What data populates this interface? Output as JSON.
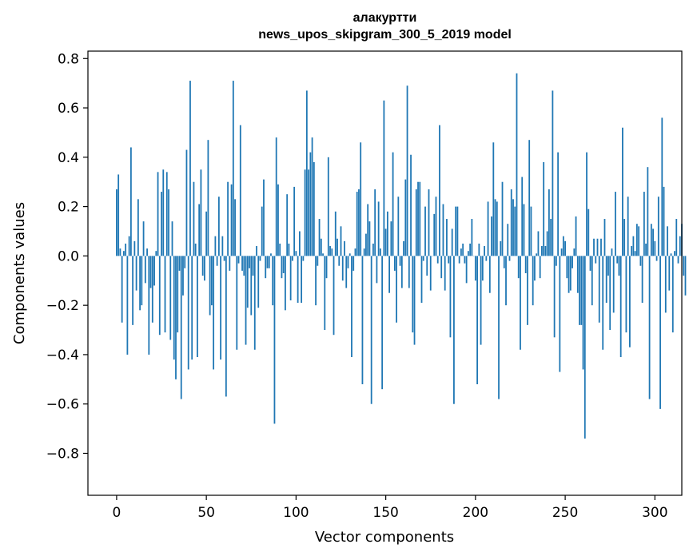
{
  "chart_data": {
    "type": "bar",
    "title_line1": "алакуртти",
    "title_line2": "news_upos_skipgram_300_5_2019 model",
    "xlabel": "Vector components",
    "ylabel": "Components values",
    "xlim": [
      -16,
      315
    ],
    "ylim": [
      -0.97,
      0.83
    ],
    "xticks": [
      0,
      50,
      100,
      150,
      200,
      250,
      300
    ],
    "xtick_labels": [
      "0",
      "50",
      "100",
      "150",
      "200",
      "250",
      "300"
    ],
    "yticks": [
      -0.8,
      -0.6,
      -0.4,
      -0.2,
      0.0,
      0.2,
      0.4,
      0.6,
      0.8
    ],
    "ytick_labels": [
      "−0.8",
      "−0.6",
      "−0.4",
      "−0.2",
      "0.0",
      "0.2",
      "0.4",
      "0.6",
      "0.8"
    ],
    "bar_color": "#1f77b4",
    "grid": false,
    "values": [
      0.27,
      0.33,
      0.03,
      -0.27,
      0.02,
      0.05,
      -0.4,
      0.08,
      0.44,
      -0.28,
      0.06,
      -0.14,
      0.23,
      -0.22,
      -0.2,
      0.14,
      -0.11,
      0.03,
      -0.4,
      -0.13,
      -0.27,
      -0.12,
      0.02,
      0.34,
      -0.32,
      0.26,
      0.35,
      -0.31,
      0.34,
      0.27,
      -0.34,
      0.14,
      -0.42,
      -0.5,
      -0.31,
      -0.06,
      -0.58,
      -0.16,
      -0.05,
      0.43,
      -0.46,
      0.71,
      -0.42,
      0.3,
      0.05,
      -0.41,
      0.21,
      0.35,
      -0.08,
      -0.1,
      0.18,
      0.47,
      -0.24,
      -0.2,
      -0.46,
      0.08,
      -0.04,
      0.24,
      -0.42,
      0.08,
      -0.02,
      -0.57,
      0.3,
      -0.06,
      0.29,
      0.71,
      0.23,
      -0.38,
      -0.03,
      0.53,
      -0.06,
      -0.08,
      -0.36,
      -0.21,
      -0.05,
      -0.24,
      -0.08,
      -0.38,
      0.04,
      -0.21,
      -0.02,
      0.2,
      0.31,
      -0.09,
      -0.05,
      -0.05,
      0.01,
      -0.2,
      -0.68,
      0.48,
      0.29,
      0.05,
      -0.09,
      -0.07,
      -0.22,
      0.25,
      0.05,
      -0.18,
      -0.02,
      0.28,
      0.02,
      -0.19,
      0.1,
      -0.19,
      -0.02,
      0.35,
      0.67,
      0.35,
      0.42,
      0.48,
      0.38,
      -0.2,
      -0.04,
      0.15,
      0.07,
      0.01,
      -0.3,
      -0.09,
      0.4,
      0.04,
      0.03,
      -0.32,
      0.18,
      0.07,
      -0.04,
      0.12,
      -0.1,
      0.06,
      -0.13,
      -0.05,
      0.01,
      -0.41,
      -0.06,
      0.03,
      0.26,
      0.27,
      0.46,
      -0.52,
      0.03,
      0.09,
      0.21,
      0.14,
      -0.6,
      0.05,
      0.27,
      -0.11,
      0.22,
      0.03,
      -0.54,
      0.63,
      0.11,
      0.18,
      -0.15,
      0.14,
      0.42,
      -0.06,
      -0.27,
      0.24,
      -0.04,
      -0.13,
      0.06,
      0.31,
      0.69,
      -0.13,
      0.41,
      -0.31,
      -0.36,
      0.27,
      0.3,
      0.3,
      -0.19,
      -0.02,
      0.2,
      -0.08,
      0.27,
      -0.14,
      0.0,
      0.17,
      0.24,
      -0.03,
      0.53,
      -0.09,
      0.21,
      -0.14,
      0.15,
      -0.03,
      -0.33,
      0.11,
      -0.6,
      0.2,
      0.2,
      -0.03,
      0.03,
      0.05,
      -0.03,
      -0.11,
      0.02,
      0.05,
      0.15,
      0.0,
      -0.1,
      -0.52,
      0.05,
      -0.36,
      -0.1,
      0.04,
      -0.02,
      0.22,
      -0.15,
      0.16,
      0.46,
      0.23,
      0.22,
      -0.58,
      0.06,
      0.3,
      -0.05,
      -0.2,
      0.13,
      -0.02,
      0.27,
      0.23,
      0.2,
      0.74,
      -0.09,
      -0.38,
      0.32,
      0.21,
      -0.07,
      -0.28,
      0.47,
      0.2,
      -0.2,
      -0.1,
      0.01,
      0.1,
      -0.09,
      0.04,
      0.38,
      0.04,
      0.1,
      0.27,
      0.15,
      0.67,
      -0.33,
      -0.04,
      0.42,
      -0.47,
      0.03,
      0.08,
      0.06,
      -0.09,
      -0.15,
      -0.14,
      -0.05,
      0.03,
      0.16,
      -0.15,
      -0.28,
      -0.28,
      -0.46,
      -0.74,
      0.42,
      0.19,
      -0.06,
      -0.2,
      0.07,
      -0.03,
      0.07,
      -0.27,
      0.07,
      -0.38,
      0.15,
      -0.19,
      -0.08,
      -0.3,
      0.03,
      -0.23,
      0.26,
      -0.03,
      -0.08,
      -0.41,
      0.52,
      0.15,
      -0.31,
      0.24,
      -0.37,
      0.04,
      0.08,
      0.02,
      0.13,
      0.12,
      -0.04,
      -0.19,
      0.26,
      0.05,
      0.36,
      -0.58,
      0.13,
      0.11,
      0.06,
      -0.02,
      0.24,
      -0.62,
      0.56,
      0.28,
      -0.23,
      0.12,
      -0.14,
      0.01,
      -0.31,
      0.02,
      0.15,
      -0.03,
      0.08,
      0.13,
      -0.08,
      -0.16
    ]
  }
}
